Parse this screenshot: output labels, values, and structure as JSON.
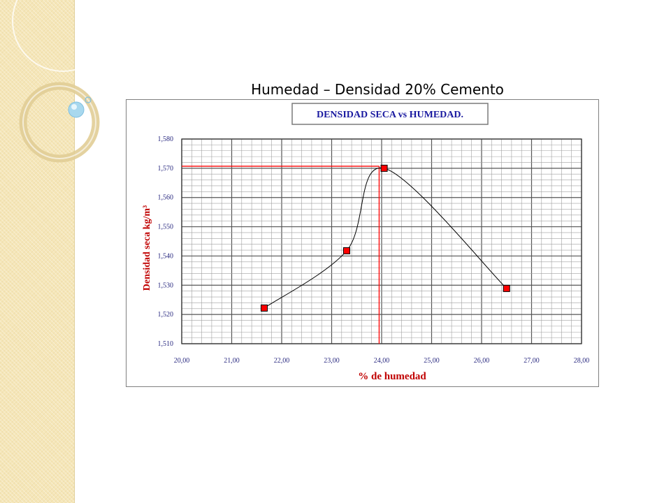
{
  "slide": {
    "title": "Humedad – Densidad 20% Cemento"
  },
  "chart_data": {
    "type": "scatter",
    "title": "DENSIDAD SECA vs HUMEDAD.",
    "xlabel": "% de humedad",
    "ylabel": "Densidad seca kg/m³",
    "xlim": [
      20,
      28
    ],
    "ylim": [
      1510,
      1580
    ],
    "x_ticks": [
      "20,00",
      "21,00",
      "22,00",
      "23,00",
      "24,00",
      "25,00",
      "26,00",
      "27,00",
      "28,00"
    ],
    "y_ticks": [
      "1,510",
      "1,520",
      "1,530",
      "1,540",
      "1,550",
      "1,560",
      "1,570",
      "1,580"
    ],
    "grid": true,
    "series": [
      {
        "x": [
          21.65,
          23.3,
          24.05,
          26.5
        ],
        "y": [
          1522.2,
          1541.8,
          1570.0,
          1528.9
        ],
        "color": "#ff0000",
        "line_color": "#000000"
      }
    ],
    "optimum": {
      "x": 23.95,
      "y": 1570.7,
      "color": "#ff0000"
    },
    "colors": {
      "title": "#1a1aa0",
      "axis_label": "#c00000",
      "tick_label": "#2a2a80",
      "grid": "#a0a0a0"
    }
  }
}
